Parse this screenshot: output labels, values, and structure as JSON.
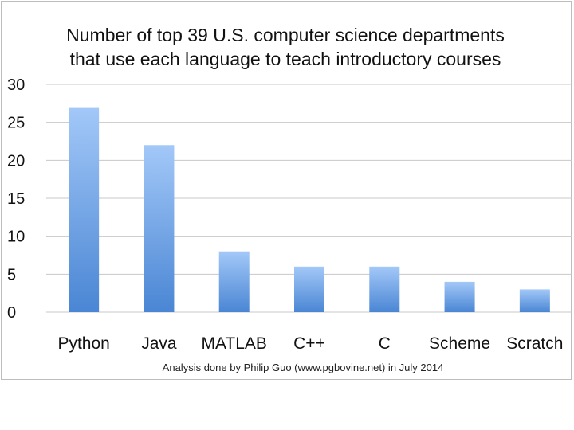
{
  "chart_data": {
    "type": "bar",
    "title_lines": [
      "Number of top 39 U.S. computer science departments",
      "that use each language to teach introductory courses"
    ],
    "categories": [
      "Python",
      "Java",
      "MATLAB",
      "C++",
      "C",
      "Scheme",
      "Scratch"
    ],
    "values": [
      27,
      22,
      8,
      6,
      6,
      4,
      3
    ],
    "ylim": [
      0,
      30
    ],
    "yticks": [
      0,
      5,
      10,
      15,
      20,
      25,
      30
    ],
    "grid": true,
    "legend": "none",
    "footnote": "Analysis done by Philip Guo (www.pgbovine.net) in July 2014",
    "colors": {
      "bar_top": "#a3c8f8",
      "bar_bottom": "#4a86d4",
      "grid": "#c8c8c8"
    }
  }
}
